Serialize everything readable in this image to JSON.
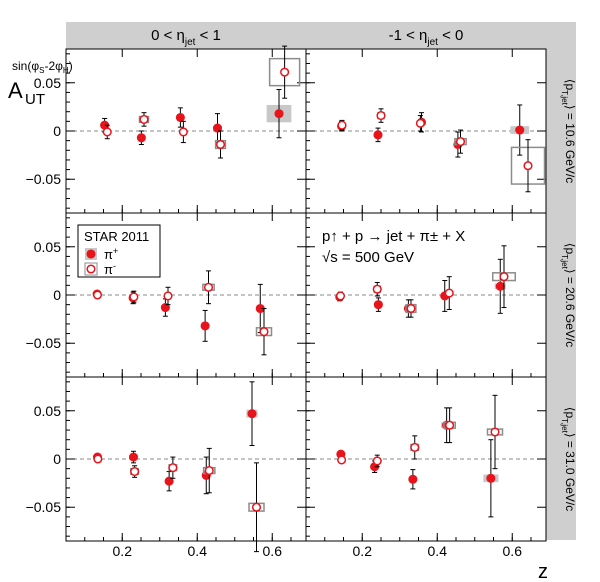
{
  "chart_data": {
    "type": "scatter",
    "figure_label": "STAR 2011",
    "reaction": "p↑ + p → jet + π± + X",
    "energy": "√s = 500 GeV",
    "ylabel": "A_UT^sin(φS-2φH)",
    "xlabel": "z",
    "x_range": [
      0.05,
      0.69
    ],
    "y_range": [
      -0.085,
      0.085
    ],
    "x_ticks": [
      0.2,
      0.4,
      0.6
    ],
    "y_ticks": [
      -0.05,
      0,
      0.05
    ],
    "x_tick_labels": [
      "0.2",
      "0.4",
      "0.6"
    ],
    "y_tick_labels": [
      "−0.05",
      "0",
      "0.05"
    ],
    "columns": [
      {
        "label": "0 < η_jet < 1"
      },
      {
        "label": "-1 < η_jet < 0"
      }
    ],
    "rows": [
      {
        "label": "⟨pT,jet⟩ = 10.6 GeV/c"
      },
      {
        "label": "⟨pT,jet⟩ = 20.6 GeV/c"
      },
      {
        "label": "⟨pT,jet⟩ = 31.0 GeV/c"
      }
    ],
    "legend": {
      "placement": "top-left of middle-left panel",
      "entries": [
        {
          "name": "π+",
          "marker": "filled"
        },
        {
          "name": "π-",
          "marker": "open"
        }
      ]
    },
    "panels": [
      {
        "row": 0,
        "col": 0,
        "series": [
          {
            "name": "π+",
            "marker": "filled",
            "points": [
              {
                "x": 0.153,
                "y": 0.006,
                "err": 0.007,
                "sys_dx": 0.005,
                "sys_dy": 0.002
              },
              {
                "x": 0.251,
                "y": -0.007,
                "err": 0.007,
                "sys_dx": 0.005,
                "sys_dy": 0.002
              },
              {
                "x": 0.355,
                "y": 0.014,
                "err": 0.01,
                "sys_dx": 0.005,
                "sys_dy": 0.002
              },
              {
                "x": 0.454,
                "y": 0.003,
                "err": 0.015,
                "sys_dx": 0.005,
                "sys_dy": 0.002
              },
              {
                "x": 0.618,
                "y": 0.018,
                "err": 0.025,
                "sys_dx": 0.033,
                "sys_dy": 0.009
              }
            ]
          },
          {
            "name": "π-",
            "marker": "open",
            "points": [
              {
                "x": 0.16,
                "y": -0.001,
                "err": 0.007,
                "sys_dx": 0.005,
                "sys_dy": 0.002
              },
              {
                "x": 0.258,
                "y": 0.012,
                "err": 0.007,
                "sys_dx": 0.012,
                "sys_dy": 0.003
              },
              {
                "x": 0.363,
                "y": -0.001,
                "err": 0.011,
                "sys_dx": 0.005,
                "sys_dy": 0.002
              },
              {
                "x": 0.462,
                "y": -0.014,
                "err": 0.014,
                "sys_dx": 0.013,
                "sys_dy": 0.004
              },
              {
                "x": 0.633,
                "y": 0.061,
                "err": 0.027,
                "sys_dx": 0.04,
                "sys_dy": 0.014
              }
            ]
          }
        ]
      },
      {
        "row": 0,
        "col": 1,
        "series": [
          {
            "name": "π+",
            "marker": "filled",
            "points": [
              {
                "x": 0.145,
                "y": 0.005,
                "err": 0.005,
                "sys_dx": 0.005,
                "sys_dy": 0.002
              },
              {
                "x": 0.242,
                "y": -0.004,
                "err": 0.007,
                "sys_dx": 0.005,
                "sys_dy": 0.002
              },
              {
                "x": 0.358,
                "y": 0.009,
                "err": 0.01,
                "sys_dx": 0.008,
                "sys_dy": 0.004
              },
              {
                "x": 0.455,
                "y": -0.014,
                "err": 0.013,
                "sys_dx": 0.01,
                "sys_dy": 0.003
              },
              {
                "x": 0.62,
                "y": 0.001,
                "err": 0.026,
                "sys_dx": 0.025,
                "sys_dy": 0.004
              }
            ]
          },
          {
            "name": "π-",
            "marker": "open",
            "points": [
              {
                "x": 0.146,
                "y": 0.006,
                "err": 0.005,
                "sys_dx": 0.005,
                "sys_dy": 0.002
              },
              {
                "x": 0.25,
                "y": 0.016,
                "err": 0.007,
                "sys_dx": 0.008,
                "sys_dy": 0.003
              },
              {
                "x": 0.355,
                "y": 0.008,
                "err": 0.008,
                "sys_dx": 0.008,
                "sys_dy": 0.002
              },
              {
                "x": 0.462,
                "y": -0.011,
                "err": 0.012,
                "sys_dx": 0.015,
                "sys_dy": 0.003
              },
              {
                "x": 0.642,
                "y": -0.036,
                "err": 0.027,
                "sys_dx": 0.044,
                "sys_dy": 0.019
              }
            ]
          }
        ]
      },
      {
        "row": 1,
        "col": 0,
        "series": [
          {
            "name": "π+",
            "marker": "filled",
            "points": [
              {
                "x": 0.133,
                "y": 0.001,
                "err": 0.003,
                "sys_dx": 0.005,
                "sys_dy": 0.002
              },
              {
                "x": 0.229,
                "y": -0.003,
                "err": 0.006,
                "sys_dx": 0.005,
                "sys_dy": 0.002
              },
              {
                "x": 0.315,
                "y": -0.013,
                "err": 0.009,
                "sys_dx": 0.005,
                "sys_dy": 0.002
              },
              {
                "x": 0.421,
                "y": -0.032,
                "err": 0.016,
                "sys_dx": 0.01,
                "sys_dy": 0.003
              },
              {
                "x": 0.568,
                "y": -0.014,
                "err": 0.025,
                "sys_dx": 0.005,
                "sys_dy": 0.002
              }
            ]
          },
          {
            "name": "π-",
            "marker": "open",
            "points": [
              {
                "x": 0.134,
                "y": 0.0,
                "err": 0.003,
                "sys_dx": 0.005,
                "sys_dy": 0.002
              },
              {
                "x": 0.231,
                "y": -0.002,
                "err": 0.006,
                "sys_dx": 0.005,
                "sys_dy": 0.002
              },
              {
                "x": 0.322,
                "y": -0.001,
                "err": 0.009,
                "sys_dx": 0.005,
                "sys_dy": 0.002
              },
              {
                "x": 0.43,
                "y": 0.008,
                "err": 0.017,
                "sys_dx": 0.015,
                "sys_dy": 0.003
              },
              {
                "x": 0.578,
                "y": -0.038,
                "err": 0.024,
                "sys_dx": 0.02,
                "sys_dy": 0.004
              }
            ]
          }
        ]
      },
      {
        "row": 1,
        "col": 1,
        "series": [
          {
            "name": "π+",
            "marker": "filled",
            "points": [
              {
                "x": 0.14,
                "y": -0.002,
                "err": 0.004,
                "sys_dx": 0.005,
                "sys_dy": 0.002
              },
              {
                "x": 0.243,
                "y": -0.01,
                "err": 0.007,
                "sys_dx": 0.005,
                "sys_dy": 0.002
              },
              {
                "x": 0.323,
                "y": -0.014,
                "err": 0.009,
                "sys_dx": 0.01,
                "sys_dy": 0.002
              },
              {
                "x": 0.42,
                "y": -0.001,
                "err": 0.016,
                "sys_dx": 0.005,
                "sys_dy": 0.002
              },
              {
                "x": 0.568,
                "y": 0.009,
                "err": 0.028,
                "sys_dx": 0.015,
                "sys_dy": 0.003
              }
            ]
          },
          {
            "name": "π-",
            "marker": "open",
            "points": [
              {
                "x": 0.142,
                "y": -0.001,
                "err": 0.004,
                "sys_dx": 0.005,
                "sys_dy": 0.002
              },
              {
                "x": 0.24,
                "y": 0.006,
                "err": 0.007,
                "sys_dx": 0.008,
                "sys_dy": 0.003
              },
              {
                "x": 0.33,
                "y": -0.014,
                "err": 0.009,
                "sys_dx": 0.013,
                "sys_dy": 0.004
              },
              {
                "x": 0.432,
                "y": 0.002,
                "err": 0.017,
                "sys_dx": 0.005,
                "sys_dy": 0.002
              },
              {
                "x": 0.578,
                "y": 0.019,
                "err": 0.032,
                "sys_dx": 0.03,
                "sys_dy": 0.004
              }
            ]
          }
        ]
      },
      {
        "row": 2,
        "col": 0,
        "series": [
          {
            "name": "π+",
            "marker": "filled",
            "points": [
              {
                "x": 0.134,
                "y": 0.002,
                "err": 0.003,
                "sys_dx": 0.005,
                "sys_dy": 0.002
              },
              {
                "x": 0.23,
                "y": 0.002,
                "err": 0.006,
                "sys_dx": 0.005,
                "sys_dy": 0.002
              },
              {
                "x": 0.325,
                "y": -0.023,
                "err": 0.01,
                "sys_dx": 0.005,
                "sys_dy": 0.002
              },
              {
                "x": 0.424,
                "y": -0.017,
                "err": 0.019,
                "sys_dx": 0.01,
                "sys_dy": 0.003
              },
              {
                "x": 0.546,
                "y": 0.047,
                "err": 0.033,
                "sys_dx": 0.015,
                "sys_dy": 0.004
              }
            ]
          },
          {
            "name": "π-",
            "marker": "open",
            "points": [
              {
                "x": 0.135,
                "y": 0.0,
                "err": 0.003,
                "sys_dx": 0.005,
                "sys_dy": 0.002
              },
              {
                "x": 0.233,
                "y": -0.013,
                "err": 0.006,
                "sys_dx": 0.01,
                "sys_dy": 0.003
              },
              {
                "x": 0.335,
                "y": -0.009,
                "err": 0.011,
                "sys_dx": 0.01,
                "sys_dy": 0.003
              },
              {
                "x": 0.432,
                "y": -0.012,
                "err": 0.023,
                "sys_dx": 0.015,
                "sys_dy": 0.003
              },
              {
                "x": 0.558,
                "y": -0.05,
                "err": 0.046,
                "sys_dx": 0.02,
                "sys_dy": 0.004
              }
            ]
          }
        ]
      },
      {
        "row": 2,
        "col": 1,
        "series": [
          {
            "name": "π+",
            "marker": "filled",
            "points": [
              {
                "x": 0.143,
                "y": 0.005,
                "err": 0.003,
                "sys_dx": 0.005,
                "sys_dy": 0.002
              },
              {
                "x": 0.233,
                "y": -0.008,
                "err": 0.006,
                "sys_dx": 0.005,
                "sys_dy": 0.002
              },
              {
                "x": 0.335,
                "y": -0.021,
                "err": 0.01,
                "sys_dx": 0.005,
                "sys_dy": 0.002
              },
              {
                "x": 0.425,
                "y": 0.035,
                "err": 0.018,
                "sys_dx": 0.015,
                "sys_dy": 0.003
              },
              {
                "x": 0.543,
                "y": -0.02,
                "err": 0.04,
                "sys_dx": 0.02,
                "sys_dy": 0.004
              }
            ]
          },
          {
            "name": "π-",
            "marker": "open",
            "points": [
              {
                "x": 0.145,
                "y": -0.001,
                "err": 0.003,
                "sys_dx": 0.005,
                "sys_dy": 0.002
              },
              {
                "x": 0.24,
                "y": -0.002,
                "err": 0.006,
                "sys_dx": 0.005,
                "sys_dy": 0.002
              },
              {
                "x": 0.34,
                "y": 0.012,
                "err": 0.012,
                "sys_dx": 0.01,
                "sys_dy": 0.003
              },
              {
                "x": 0.433,
                "y": 0.035,
                "err": 0.018,
                "sys_dx": 0.015,
                "sys_dy": 0.003
              },
              {
                "x": 0.554,
                "y": 0.028,
                "err": 0.038,
                "sys_dx": 0.02,
                "sys_dy": 0.003
              }
            ]
          }
        ]
      }
    ],
    "colors": {
      "plus": "#e8141c",
      "minus": "#e8141c",
      "sys_band": "#c8c8c8",
      "header_band": "#cfcfcf",
      "zero_line": "#8a8a8a"
    }
  }
}
